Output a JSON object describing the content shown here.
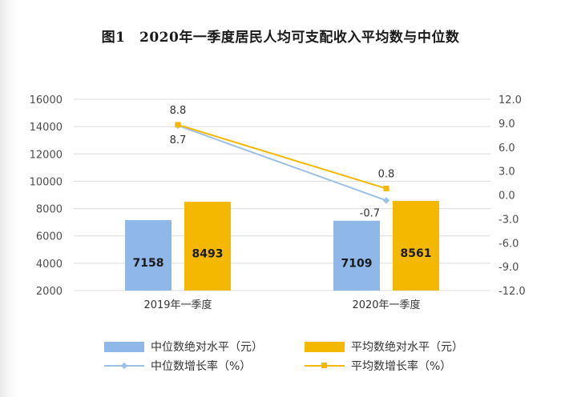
{
  "chart_data": {
    "title": "图1　2020年一季度居民人均可支配收入平均数与中位数",
    "type": "bar",
    "categories": [
      "2019年一季度",
      "2020年一季度"
    ],
    "bar_series": [
      {
        "name": "中位数绝对水平（元）",
        "values": [
          7158,
          7109
        ],
        "color": "#8fb8e8"
      },
      {
        "name": "平均数绝对水平（元）",
        "values": [
          8493,
          8561
        ],
        "color": "#f5b800"
      }
    ],
    "line_series": [
      {
        "name": "中位数增长率（%）",
        "values": [
          8.7,
          -0.7
        ],
        "color": "#9dc0e6"
      },
      {
        "name": "平均数增长率（%）",
        "values": [
          8.8,
          0.8
        ],
        "color": "#f5b800"
      }
    ],
    "y_left": {
      "range": [
        2000,
        16000
      ],
      "ticks": [
        "16000",
        "14000",
        "12000",
        "10000",
        "8000",
        "6000",
        "4000",
        "2000"
      ]
    },
    "y_right": {
      "range": [
        -12,
        12
      ],
      "ticks": [
        "12.0",
        "9.0",
        "6.0",
        "3.0",
        "0.0",
        "-3.0",
        "-6.0",
        "-9.0",
        "-12.0"
      ]
    },
    "grid": true,
    "legend_position": "bottom"
  }
}
